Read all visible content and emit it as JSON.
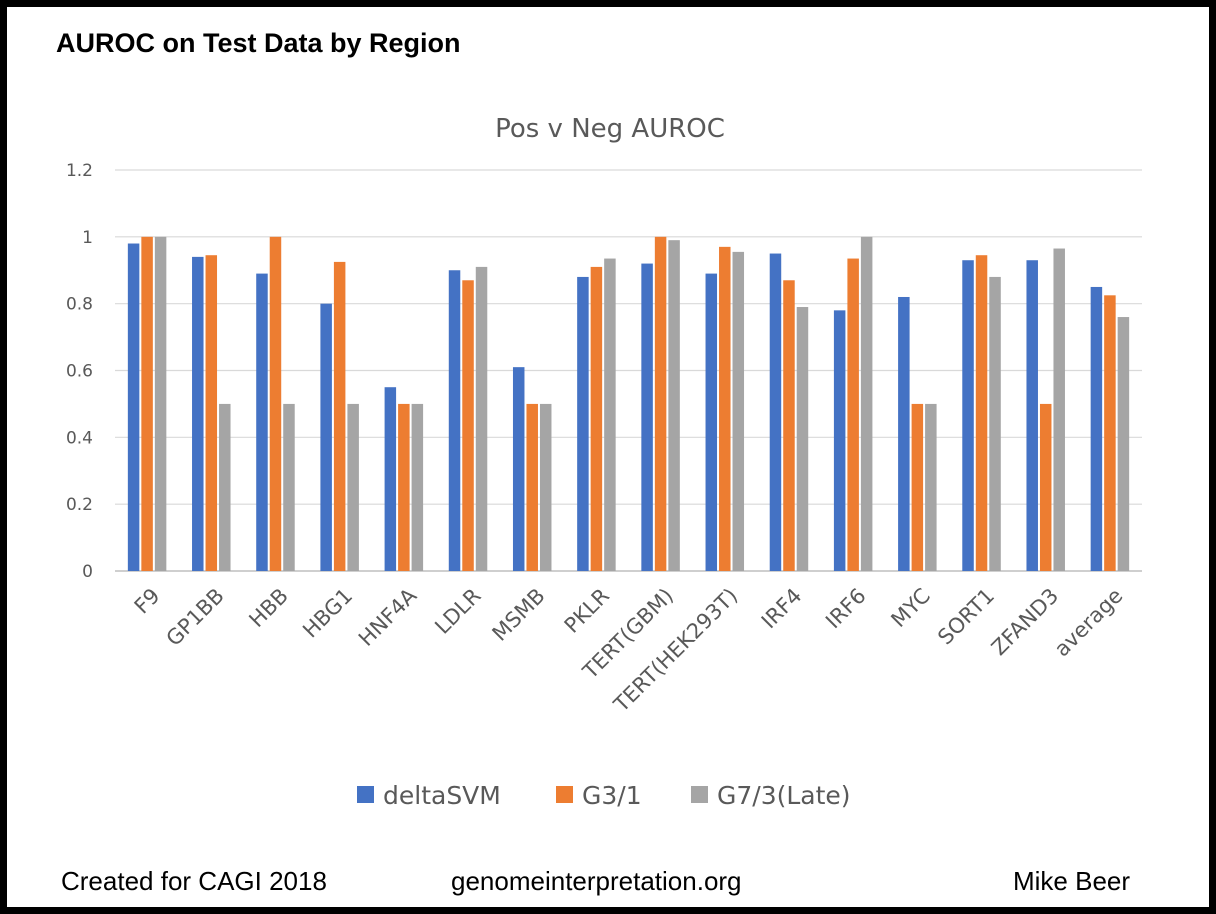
{
  "slide": {
    "title": "AUROC on Test Data by Region",
    "footer_left": "Created for CAGI 2018",
    "footer_center": "genomeinterpretation.org",
    "footer_right": "Mike Beer"
  },
  "chart_data": {
    "type": "bar",
    "title": "Pos v Neg AUROC",
    "xlabel": "",
    "ylabel": "",
    "ylim": [
      0,
      1.2
    ],
    "yticks": [
      "0",
      "0.2",
      "0.4",
      "0.6",
      "0.8",
      "1",
      "1.2"
    ],
    "grid": true,
    "legend": "bottom",
    "categories": [
      "F9",
      "GP1BB",
      "HBB",
      "HBG1",
      "HNF4A",
      "LDLR",
      "MSMB",
      "PKLR",
      "TERT(GBM)",
      "TERT(HEK293T)",
      "IRF4",
      "IRF6",
      "MYC",
      "SORT1",
      "ZFAND3",
      "average"
    ],
    "series": [
      {
        "name": "deltaSVM",
        "color": "#4472C4",
        "values": [
          0.98,
          0.94,
          0.89,
          0.8,
          0.55,
          0.9,
          0.61,
          0.88,
          0.92,
          0.89,
          0.95,
          0.78,
          0.82,
          0.93,
          0.93,
          0.85
        ]
      },
      {
        "name": "G3/1",
        "color": "#ED7D31",
        "values": [
          1.0,
          0.945,
          1.0,
          0.925,
          0.5,
          0.87,
          0.5,
          0.91,
          1.0,
          0.97,
          0.87,
          0.935,
          0.5,
          0.945,
          0.5,
          0.825
        ]
      },
      {
        "name": "G7/3(Late)",
        "color": "#A5A5A5",
        "values": [
          1.0,
          0.5,
          0.5,
          0.5,
          0.5,
          0.91,
          0.5,
          0.935,
          0.99,
          0.955,
          0.79,
          1.0,
          0.5,
          0.88,
          0.965,
          0.76
        ]
      }
    ]
  }
}
